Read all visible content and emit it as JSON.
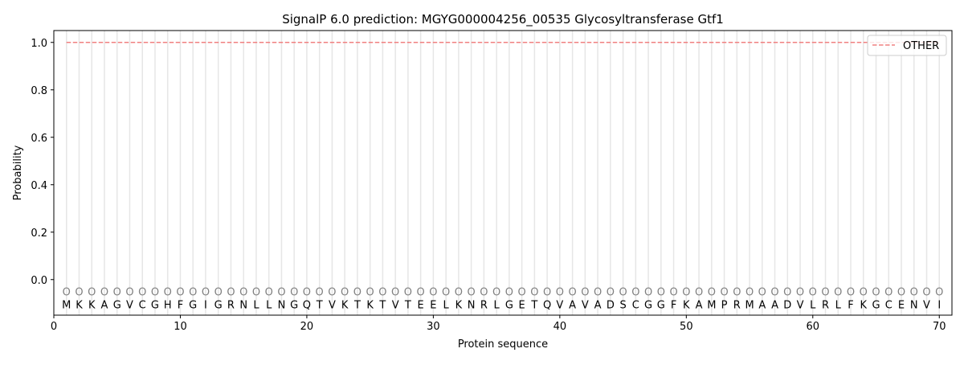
{
  "chart_data": {
    "type": "line",
    "title": "SignalP 6.0 prediction: MGYG000004256_00535 Glycosyltransferase Gtf1",
    "xlabel": "Protein sequence",
    "ylabel": "Probability",
    "xlim": [
      0,
      71
    ],
    "ylim": [
      -0.15,
      1.05
    ],
    "xticks": [
      0,
      10,
      20,
      30,
      40,
      50,
      60,
      70
    ],
    "yticks": [
      0.0,
      0.2,
      0.4,
      0.6,
      0.8,
      1.0
    ],
    "ytick_labels": [
      "0.0",
      "0.2",
      "0.4",
      "0.6",
      "0.8",
      "1.0"
    ],
    "grid": "vertical lines at each residue",
    "legend_position": "top-right",
    "series": [
      {
        "name": "OTHER",
        "color": "#f08080",
        "style": "dashed",
        "x_start": 1,
        "x_end": 70,
        "value": 1.0
      }
    ],
    "sequence": [
      "M",
      "K",
      "K",
      "A",
      "G",
      "V",
      "C",
      "G",
      "H",
      "F",
      "G",
      "I",
      "G",
      "R",
      "N",
      "L",
      "L",
      "N",
      "G",
      "Q",
      "T",
      "V",
      "K",
      "T",
      "K",
      "T",
      "V",
      "T",
      "E",
      "E",
      "L",
      "K",
      "N",
      "R",
      "L",
      "G",
      "E",
      "T",
      "Q",
      "V",
      "A",
      "V",
      "A",
      "D",
      "S",
      "C",
      "G",
      "G",
      "F",
      "K",
      "A",
      "M",
      "P",
      "R",
      "M",
      "A",
      "A",
      "D",
      "V",
      "L",
      "R",
      "L",
      "F",
      "K",
      "G",
      "C",
      "E",
      "N",
      "V",
      "I"
    ],
    "predicted_labels": "OOOOOOOOOOOOOOOOOOOOOOOOOOOOOOOOOOOOOOOOOOOOOOOOOOOOOOOOOOOOOOOOOOOOOO",
    "marker_y": -0.05
  }
}
